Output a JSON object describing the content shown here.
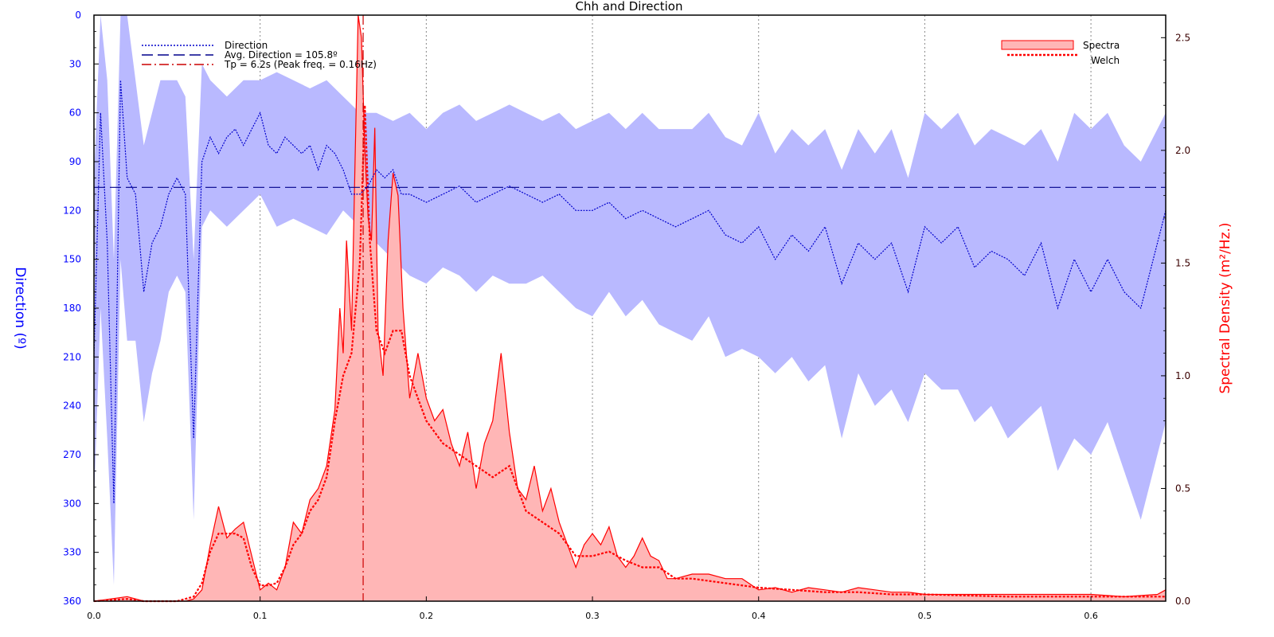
{
  "chart_data": {
    "type": "line",
    "title": "Chh and Direction",
    "xlabel": "",
    "ylabel_left": "Direction (º)",
    "ylabel_right": "Spectral Density (m²/Hz.)",
    "xlim": [
      0,
      0.645
    ],
    "ylim_left": [
      0,
      360
    ],
    "ylim_left_inverted": true,
    "ylim_right": [
      0,
      2.6
    ],
    "x_ticks": [
      "0.0",
      "0.1",
      "0.2",
      "0.3",
      "0.4",
      "0.5",
      "0.6"
    ],
    "x_tick_values": [
      0,
      0.1,
      0.2,
      0.3,
      0.4,
      0.5,
      0.6
    ],
    "left_ticks": [
      "0",
      "30",
      "60",
      "90",
      "120",
      "150",
      "180",
      "210",
      "240",
      "270",
      "300",
      "330",
      "360"
    ],
    "left_tick_values": [
      0,
      30,
      60,
      90,
      120,
      150,
      180,
      210,
      240,
      270,
      300,
      330,
      360
    ],
    "right_ticks": [
      "0.0",
      "0.5",
      "1.0",
      "1.5",
      "2.0",
      "2.5"
    ],
    "right_tick_values": [
      0,
      0.5,
      1.0,
      1.5,
      2.0,
      2.5
    ],
    "grid": "x-dotted",
    "legend_left": {
      "placement": "top-left",
      "entries": [
        "Direction",
        "Avg. Direction = 105.8º",
        "Tp = 6.2s (Peak freq. = 0.16Hz)"
      ]
    },
    "legend_right": {
      "placement": "top-right",
      "entries": [
        "Spectra",
        "Welch"
      ]
    },
    "avg_direction": 105.8,
    "peak_freq": 0.162,
    "colors": {
      "direction": "#0000cc",
      "direction_band": "#b9b9ff",
      "avg_line": "#00008b",
      "spectra_line": "#ff0000",
      "spectra_fill": "#ffb6b6",
      "welch": "#ff0000",
      "tp_line": "#cc0000"
    },
    "series": [
      {
        "name": "Direction",
        "axis": "left",
        "x": [
          0.0,
          0.004,
          0.008,
          0.012,
          0.016,
          0.02,
          0.025,
          0.03,
          0.035,
          0.04,
          0.045,
          0.05,
          0.055,
          0.06,
          0.065,
          0.07,
          0.075,
          0.08,
          0.085,
          0.09,
          0.095,
          0.1,
          0.105,
          0.11,
          0.115,
          0.12,
          0.125,
          0.13,
          0.135,
          0.14,
          0.145,
          0.15,
          0.155,
          0.16,
          0.165,
          0.17,
          0.175,
          0.18,
          0.185,
          0.19,
          0.2,
          0.21,
          0.22,
          0.23,
          0.24,
          0.25,
          0.26,
          0.27,
          0.28,
          0.29,
          0.3,
          0.31,
          0.32,
          0.33,
          0.34,
          0.35,
          0.36,
          0.37,
          0.38,
          0.39,
          0.4,
          0.41,
          0.42,
          0.43,
          0.44,
          0.45,
          0.46,
          0.47,
          0.48,
          0.49,
          0.5,
          0.51,
          0.52,
          0.53,
          0.54,
          0.55,
          0.56,
          0.57,
          0.58,
          0.59,
          0.6,
          0.61,
          0.62,
          0.63,
          0.645
        ],
        "values": [
          210,
          60,
          140,
          300,
          40,
          100,
          110,
          170,
          140,
          130,
          110,
          100,
          110,
          260,
          90,
          75,
          85,
          75,
          70,
          80,
          70,
          60,
          80,
          85,
          75,
          80,
          85,
          80,
          95,
          80,
          85,
          95,
          110,
          110,
          105,
          95,
          100,
          95,
          110,
          110,
          115,
          110,
          105,
          115,
          110,
          105,
          110,
          115,
          110,
          120,
          120,
          115,
          125,
          120,
          125,
          130,
          125,
          120,
          135,
          140,
          130,
          150,
          135,
          145,
          130,
          165,
          140,
          150,
          140,
          170,
          130,
          140,
          130,
          155,
          145,
          150,
          160,
          140,
          180,
          150,
          170,
          150,
          170,
          180,
          120
        ]
      },
      {
        "name": "Direction band upper",
        "axis": "left",
        "x": [
          0.0,
          0.004,
          0.008,
          0.012,
          0.016,
          0.02,
          0.025,
          0.03,
          0.035,
          0.04,
          0.045,
          0.05,
          0.055,
          0.06,
          0.065,
          0.07,
          0.08,
          0.09,
          0.1,
          0.11,
          0.12,
          0.13,
          0.14,
          0.15,
          0.16,
          0.17,
          0.18,
          0.19,
          0.2,
          0.21,
          0.22,
          0.23,
          0.24,
          0.25,
          0.26,
          0.27,
          0.28,
          0.29,
          0.3,
          0.31,
          0.32,
          0.33,
          0.34,
          0.35,
          0.36,
          0.37,
          0.38,
          0.39,
          0.4,
          0.41,
          0.42,
          0.43,
          0.44,
          0.45,
          0.46,
          0.47,
          0.48,
          0.49,
          0.5,
          0.51,
          0.52,
          0.53,
          0.54,
          0.55,
          0.56,
          0.57,
          0.58,
          0.59,
          0.6,
          0.61,
          0.62,
          0.63,
          0.645
        ],
        "values": [
          100,
          0,
          40,
          150,
          0,
          0,
          40,
          80,
          60,
          40,
          40,
          40,
          50,
          150,
          30,
          40,
          50,
          40,
          40,
          35,
          40,
          45,
          40,
          50,
          60,
          60,
          65,
          60,
          70,
          60,
          55,
          65,
          60,
          55,
          60,
          65,
          60,
          70,
          65,
          60,
          70,
          60,
          70,
          70,
          70,
          60,
          75,
          80,
          60,
          85,
          70,
          80,
          70,
          95,
          70,
          85,
          70,
          100,
          60,
          70,
          60,
          80,
          70,
          75,
          80,
          70,
          90,
          60,
          70,
          60,
          80,
          90,
          60
        ]
      },
      {
        "name": "Direction band lower",
        "axis": "left",
        "x": [
          0.0,
          0.004,
          0.008,
          0.012,
          0.016,
          0.02,
          0.025,
          0.03,
          0.035,
          0.04,
          0.045,
          0.05,
          0.055,
          0.06,
          0.065,
          0.07,
          0.08,
          0.09,
          0.1,
          0.11,
          0.12,
          0.13,
          0.14,
          0.15,
          0.16,
          0.17,
          0.18,
          0.19,
          0.2,
          0.21,
          0.22,
          0.23,
          0.24,
          0.25,
          0.26,
          0.27,
          0.28,
          0.29,
          0.3,
          0.31,
          0.32,
          0.33,
          0.34,
          0.35,
          0.36,
          0.37,
          0.38,
          0.39,
          0.4,
          0.41,
          0.42,
          0.43,
          0.44,
          0.45,
          0.46,
          0.47,
          0.48,
          0.49,
          0.5,
          0.51,
          0.52,
          0.53,
          0.54,
          0.55,
          0.56,
          0.57,
          0.58,
          0.59,
          0.6,
          0.61,
          0.62,
          0.63,
          0.645
        ],
        "values": [
          300,
          180,
          260,
          350,
          150,
          200,
          200,
          250,
          220,
          200,
          170,
          160,
          170,
          310,
          130,
          120,
          130,
          120,
          110,
          130,
          125,
          130,
          135,
          120,
          130,
          140,
          150,
          160,
          165,
          155,
          160,
          170,
          160,
          165,
          165,
          160,
          170,
          180,
          185,
          170,
          185,
          175,
          190,
          195,
          200,
          185,
          210,
          205,
          210,
          220,
          210,
          225,
          215,
          260,
          220,
          240,
          230,
          250,
          220,
          230,
          230,
          250,
          240,
          260,
          250,
          240,
          280,
          260,
          270,
          250,
          280,
          310,
          250
        ]
      },
      {
        "name": "Spectra",
        "axis": "right",
        "x": [
          0.0,
          0.01,
          0.02,
          0.03,
          0.04,
          0.05,
          0.055,
          0.06,
          0.065,
          0.07,
          0.075,
          0.08,
          0.085,
          0.09,
          0.095,
          0.1,
          0.105,
          0.11,
          0.115,
          0.12,
          0.125,
          0.13,
          0.135,
          0.14,
          0.145,
          0.148,
          0.15,
          0.152,
          0.155,
          0.157,
          0.159,
          0.161,
          0.163,
          0.165,
          0.167,
          0.169,
          0.171,
          0.174,
          0.177,
          0.18,
          0.183,
          0.186,
          0.19,
          0.195,
          0.2,
          0.205,
          0.21,
          0.215,
          0.22,
          0.225,
          0.23,
          0.235,
          0.24,
          0.245,
          0.25,
          0.255,
          0.26,
          0.265,
          0.27,
          0.275,
          0.28,
          0.285,
          0.29,
          0.295,
          0.3,
          0.305,
          0.31,
          0.315,
          0.32,
          0.325,
          0.33,
          0.335,
          0.34,
          0.345,
          0.35,
          0.36,
          0.37,
          0.38,
          0.39,
          0.4,
          0.41,
          0.42,
          0.43,
          0.44,
          0.45,
          0.46,
          0.47,
          0.48,
          0.49,
          0.5,
          0.52,
          0.54,
          0.56,
          0.58,
          0.6,
          0.62,
          0.64,
          0.645
        ],
        "values": [
          0.0,
          0.01,
          0.02,
          0.0,
          0.0,
          0.0,
          0.0,
          0.01,
          0.05,
          0.25,
          0.42,
          0.28,
          0.32,
          0.35,
          0.2,
          0.05,
          0.08,
          0.05,
          0.15,
          0.35,
          0.3,
          0.45,
          0.5,
          0.6,
          0.85,
          1.3,
          1.1,
          1.6,
          1.2,
          1.9,
          2.6,
          2.5,
          2.0,
          1.7,
          1.6,
          2.1,
          1.2,
          1.0,
          1.6,
          1.9,
          1.8,
          1.3,
          0.9,
          1.1,
          0.9,
          0.8,
          0.85,
          0.7,
          0.6,
          0.75,
          0.5,
          0.7,
          0.8,
          1.1,
          0.75,
          0.5,
          0.45,
          0.6,
          0.4,
          0.5,
          0.35,
          0.25,
          0.15,
          0.25,
          0.3,
          0.25,
          0.33,
          0.2,
          0.15,
          0.2,
          0.28,
          0.2,
          0.18,
          0.1,
          0.1,
          0.12,
          0.12,
          0.1,
          0.1,
          0.05,
          0.06,
          0.04,
          0.06,
          0.05,
          0.04,
          0.06,
          0.05,
          0.04,
          0.04,
          0.03,
          0.03,
          0.03,
          0.03,
          0.03,
          0.03,
          0.02,
          0.03,
          0.05
        ]
      },
      {
        "name": "Welch",
        "axis": "right",
        "x": [
          0.0,
          0.01,
          0.02,
          0.03,
          0.04,
          0.05,
          0.06,
          0.065,
          0.07,
          0.075,
          0.08,
          0.085,
          0.09,
          0.095,
          0.1,
          0.105,
          0.11,
          0.115,
          0.12,
          0.125,
          0.13,
          0.135,
          0.14,
          0.145,
          0.15,
          0.155,
          0.16,
          0.163,
          0.166,
          0.17,
          0.175,
          0.18,
          0.185,
          0.19,
          0.195,
          0.2,
          0.21,
          0.22,
          0.23,
          0.24,
          0.25,
          0.26,
          0.27,
          0.28,
          0.29,
          0.3,
          0.31,
          0.32,
          0.33,
          0.34,
          0.35,
          0.36,
          0.38,
          0.4,
          0.42,
          0.44,
          0.46,
          0.48,
          0.5,
          0.55,
          0.6,
          0.645
        ],
        "values": [
          0.0,
          0.005,
          0.01,
          0.0,
          0.0,
          0.0,
          0.02,
          0.08,
          0.22,
          0.3,
          0.3,
          0.3,
          0.28,
          0.15,
          0.07,
          0.07,
          0.08,
          0.15,
          0.25,
          0.3,
          0.4,
          0.45,
          0.55,
          0.8,
          1.0,
          1.1,
          1.5,
          2.2,
          1.6,
          1.2,
          1.1,
          1.2,
          1.2,
          1.0,
          0.9,
          0.8,
          0.7,
          0.65,
          0.6,
          0.55,
          0.6,
          0.4,
          0.35,
          0.3,
          0.2,
          0.2,
          0.22,
          0.18,
          0.15,
          0.15,
          0.1,
          0.1,
          0.08,
          0.06,
          0.05,
          0.04,
          0.04,
          0.03,
          0.03,
          0.02,
          0.02,
          0.02
        ]
      }
    ]
  }
}
